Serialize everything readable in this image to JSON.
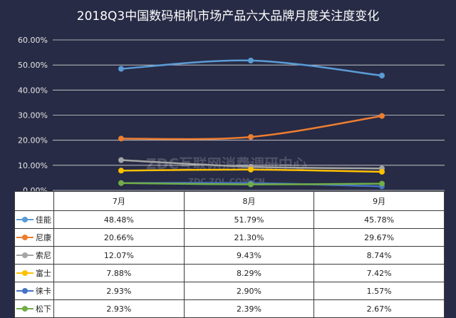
{
  "chart_data": {
    "type": "line",
    "title": "2018Q3中国数码相机市场产品六大品牌月度关注度变化",
    "categories": [
      "7月",
      "8月",
      "9月"
    ],
    "yticks": [
      "60.00%",
      "50.00%",
      "40.00%",
      "30.00%",
      "20.00%",
      "10.00%",
      "0.00%"
    ],
    "ylim": [
      0,
      60
    ],
    "grid": true,
    "series": [
      {
        "name": "佳能",
        "color": "#5b9bd5",
        "values": [
          48.48,
          51.79,
          45.78
        ],
        "labels": [
          "48.48%",
          "51.79%",
          "45.78%"
        ]
      },
      {
        "name": "尼康",
        "color": "#ed7d31",
        "values": [
          20.66,
          21.3,
          29.67
        ],
        "labels": [
          "20.66%",
          "21.30%",
          "29.67%"
        ]
      },
      {
        "name": "索尼",
        "color": "#a5a5a5",
        "values": [
          12.07,
          9.43,
          8.74
        ],
        "labels": [
          "12.07%",
          "9.43%",
          "8.74%"
        ]
      },
      {
        "name": "富士",
        "color": "#ffc000",
        "values": [
          7.88,
          8.29,
          7.42
        ],
        "labels": [
          "7.88%",
          "8.29%",
          "7.42%"
        ]
      },
      {
        "name": "徕卡",
        "color": "#4472c4",
        "values": [
          2.93,
          2.9,
          1.57
        ],
        "labels": [
          "2.93%",
          "2.90%",
          "1.57%"
        ]
      },
      {
        "name": "松下",
        "color": "#70ad47",
        "values": [
          2.93,
          2.39,
          2.67
        ],
        "labels": [
          "2.93%",
          "2.39%",
          "2.67%"
        ]
      }
    ]
  },
  "watermark": {
    "main": "ZDC互联网消费调研中心",
    "sub": "ZDC.ZOL.COM.CN"
  }
}
